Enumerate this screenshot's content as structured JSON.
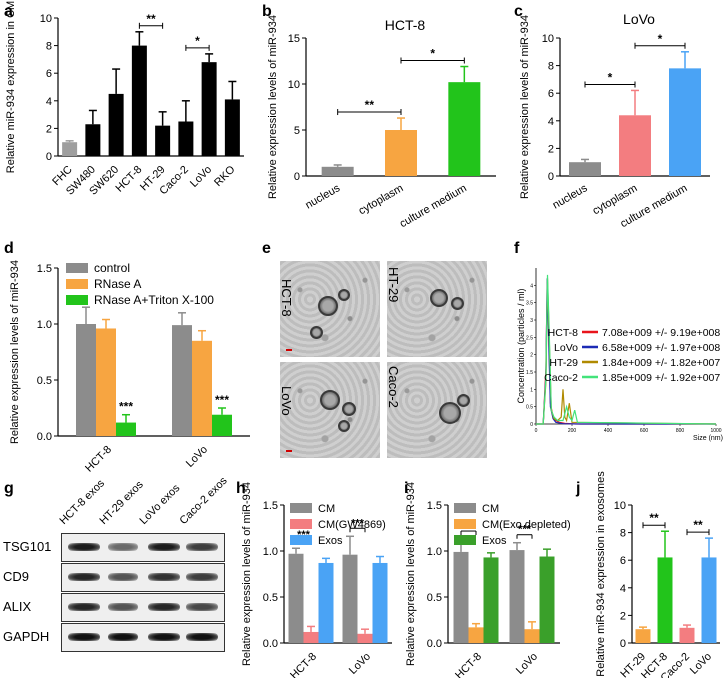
{
  "panels": {
    "a": {
      "letter": "a"
    },
    "b": {
      "letter": "b"
    },
    "c": {
      "letter": "c"
    },
    "d": {
      "letter": "d"
    },
    "e": {
      "letter": "e"
    },
    "f": {
      "letter": "f"
    },
    "g": {
      "letter": "g"
    },
    "h": {
      "letter": "h"
    },
    "i": {
      "letter": "i"
    },
    "j": {
      "letter": "j"
    }
  },
  "chart_data": [
    {
      "id": "a",
      "type": "bar",
      "ylabel": "Relative miR-934 expression  in CM",
      "ylim": [
        0,
        10
      ],
      "yticks": [
        0,
        2,
        4,
        6,
        8,
        10
      ],
      "categories": [
        "FHC",
        "SW480",
        "SW620",
        "HCT-8",
        "HT-29",
        "Caco-2",
        "LoVo",
        "RKO"
      ],
      "values": [
        1.0,
        2.3,
        4.5,
        8.0,
        2.2,
        2.5,
        6.8,
        4.1
      ],
      "errors": [
        0.1,
        1.0,
        1.8,
        1.0,
        1.0,
        1.5,
        0.6,
        1.3
      ],
      "colors": [
        "#9e9e9e",
        "#000000",
        "#000000",
        "#000000",
        "#000000",
        "#000000",
        "#000000",
        "#000000"
      ],
      "brackets": [
        {
          "from": 3,
          "to": 4,
          "label": "**"
        },
        {
          "from": 5,
          "to": 6,
          "label": "*"
        }
      ]
    },
    {
      "id": "b",
      "type": "bar",
      "title": "HCT-8",
      "ylabel": "Relative expression levels of miR-934",
      "ylim": [
        0,
        15
      ],
      "yticks": [
        0,
        5,
        10,
        15
      ],
      "categories": [
        "nucleus",
        "cytoplasm",
        "culture medium"
      ],
      "values": [
        1.0,
        5.0,
        10.2
      ],
      "errors": [
        0.2,
        1.3,
        1.7
      ],
      "colors": [
        "#8c8c8c",
        "#f7a541",
        "#22c41b"
      ],
      "brackets": [
        {
          "from": 0,
          "to": 1,
          "label": "**"
        },
        {
          "from": 1,
          "to": 2,
          "label": "*"
        }
      ]
    },
    {
      "id": "c",
      "type": "bar",
      "title": "LoVo",
      "ylabel": "Relative expression levels of miR-934",
      "ylim": [
        0,
        10
      ],
      "yticks": [
        0,
        2,
        4,
        6,
        8,
        10
      ],
      "categories": [
        "nucleus",
        "cytoplasm",
        "culture medium"
      ],
      "values": [
        1.0,
        4.4,
        7.8
      ],
      "errors": [
        0.2,
        1.8,
        1.2
      ],
      "colors": [
        "#8c8c8c",
        "#f37d80",
        "#4aa3f5"
      ],
      "brackets": [
        {
          "from": 0,
          "to": 1,
          "label": "*"
        },
        {
          "from": 1,
          "to": 2,
          "label": "*"
        }
      ]
    },
    {
      "id": "d",
      "type": "bar",
      "ylabel": "Relative expression levels of miR-934",
      "ylim": [
        0,
        1.5
      ],
      "yticks": [
        0.0,
        0.5,
        1.0,
        1.5
      ],
      "ytick_labels": [
        "0.0",
        "0.5",
        "1.0",
        "1.5"
      ],
      "categories": [
        "HCT-8",
        "LoVo"
      ],
      "series": [
        {
          "name": "control",
          "values": [
            1.0,
            0.99
          ],
          "errors": [
            0.15,
            0.11
          ]
        },
        {
          "name": "RNase A",
          "values": [
            0.96,
            0.85
          ],
          "errors": [
            0.08,
            0.09
          ]
        },
        {
          "name": "RNase A+Triton X-100",
          "values": [
            0.12,
            0.19
          ],
          "errors": [
            0.07,
            0.06
          ]
        }
      ],
      "colors": [
        "#8c8c8c",
        "#f7a541",
        "#22c41b"
      ],
      "annotations": [
        "***",
        "***"
      ],
      "legend": "top-left"
    },
    {
      "id": "f",
      "type": "line",
      "ylabel": "Concentration (particles / ml)",
      "xlabel": "Size (nm)",
      "xlim": [
        0,
        1000
      ],
      "ylim": [
        0,
        4.5
      ],
      "xticks": [
        0,
        200,
        400,
        600,
        800,
        1000
      ],
      "yticks": [
        0,
        0.5,
        1,
        1.5,
        2,
        2.5,
        3,
        3.5,
        4
      ],
      "ytick_labels": [
        "0",
        "0.5",
        "1",
        "1.5",
        "2",
        "2.5",
        "3",
        "3.5",
        "4"
      ],
      "legend": "center-right",
      "series": [
        {
          "name": "HCT-8",
          "label": "7.08e+009 +/- 9.19e+008",
          "color": "#e8141b",
          "x": [
            0,
            40,
            55,
            62,
            70,
            80,
            95,
            110,
            130,
            160,
            220,
            300,
            1000
          ],
          "y": [
            0,
            0,
            1.6,
            4.1,
            2.8,
            0.6,
            0.2,
            0.1,
            0.05,
            0.02,
            0,
            0,
            0
          ]
        },
        {
          "name": "LoVo",
          "label": "6.58e+009 +/- 1.97e+008",
          "color": "#1c2bb5",
          "x": [
            0,
            40,
            55,
            62,
            70,
            80,
            95,
            110,
            150,
            250,
            1000
          ],
          "y": [
            0,
            0,
            1.4,
            4.2,
            2.5,
            0.5,
            0.15,
            0.05,
            0.01,
            0,
            0
          ]
        },
        {
          "name": "HT-29",
          "label": "1.84e+009 +/- 1.82e+007",
          "color": "#b08a00",
          "x": [
            0,
            40,
            55,
            64,
            72,
            85,
            100,
            120,
            140,
            150,
            160,
            170,
            185,
            200,
            1000
          ],
          "y": [
            0,
            0,
            1.2,
            4.2,
            2.7,
            0.4,
            0.15,
            0.1,
            0.2,
            1.0,
            0.2,
            0.1,
            0.6,
            0.05,
            0
          ]
        },
        {
          "name": "Caco-2",
          "label": "1.85e+009 +/- 1.92e+007",
          "color": "#42e37a",
          "x": [
            0,
            40,
            55,
            64,
            72,
            85,
            100,
            120,
            150,
            170,
            185,
            200,
            215,
            230,
            1000
          ],
          "y": [
            0,
            0,
            1.3,
            4.3,
            2.9,
            0.4,
            0.2,
            0.1,
            0.1,
            0.5,
            0.2,
            0.1,
            0.4,
            0.05,
            0
          ]
        }
      ]
    },
    {
      "id": "h",
      "type": "bar",
      "ylabel": "Relative expression levels of miR-934",
      "ylim": [
        0,
        1.5
      ],
      "yticks": [
        0.0,
        0.5,
        1.0,
        1.5
      ],
      "ytick_labels": [
        "0.0",
        "0.5",
        "1.0",
        "1.5"
      ],
      "categories": [
        "HCT-8",
        "LoVo"
      ],
      "series": [
        {
          "name": "CM",
          "values": [
            0.97,
            0.96
          ],
          "errors": [
            0.06,
            0.2
          ]
        },
        {
          "name": "CM(GW4869)",
          "values": [
            0.12,
            0.1
          ],
          "errors": [
            0.06,
            0.05
          ]
        },
        {
          "name": "Exos",
          "values": [
            0.87,
            0.87
          ],
          "errors": [
            0.05,
            0.07
          ]
        }
      ],
      "colors": [
        "#8c8c8c",
        "#f37d80",
        "#4aa3f5"
      ],
      "brackets": [
        {
          "group": 0,
          "label": "***"
        },
        {
          "group": 1,
          "label": "***"
        }
      ],
      "legend": "top-left"
    },
    {
      "id": "i",
      "type": "bar",
      "ylabel": "Relative expression levels of miR-934",
      "ylim": [
        0,
        1.5
      ],
      "yticks": [
        0.0,
        0.5,
        1.0,
        1.5
      ],
      "ytick_labels": [
        "0.0",
        "0.5",
        "1.0",
        "1.5"
      ],
      "categories": [
        "HCT-8",
        "LoVo"
      ],
      "series": [
        {
          "name": "CM",
          "values": [
            0.99,
            1.01
          ],
          "errors": [
            0.14,
            0.08
          ]
        },
        {
          "name": "CM(Exo depleted)",
          "values": [
            0.17,
            0.15
          ],
          "errors": [
            0.04,
            0.08
          ]
        },
        {
          "name": "Exos",
          "values": [
            0.93,
            0.94
          ],
          "errors": [
            0.05,
            0.08
          ]
        }
      ],
      "colors": [
        "#8c8c8c",
        "#f7a541",
        "#3aa02a"
      ],
      "brackets": [
        {
          "group": 0,
          "label": "***"
        },
        {
          "group": 1,
          "label": "***"
        }
      ],
      "legend": "top-left"
    },
    {
      "id": "j",
      "type": "bar",
      "ylabel": "Relative miR-934 expression in exosomes",
      "ylim": [
        0,
        10
      ],
      "yticks": [
        0,
        2,
        4,
        6,
        8,
        10
      ],
      "categories": [
        "HT-29",
        "HCT-8",
        "Caco-2",
        "LoVo"
      ],
      "values": [
        1.0,
        6.2,
        1.1,
        6.2
      ],
      "errors": [
        0.15,
        1.9,
        0.2,
        1.4
      ],
      "colors": [
        "#f7a541",
        "#22c41b",
        "#f37d80",
        "#4aa3f5"
      ],
      "brackets": [
        {
          "from": 0,
          "to": 1,
          "label": "**"
        },
        {
          "from": 2,
          "to": 3,
          "label": "**"
        }
      ]
    }
  ],
  "em_panel": {
    "labels": [
      "HCT-8",
      "HT-29",
      "LoVo",
      "Caco-2"
    ]
  },
  "western_blot": {
    "lanes": [
      "HCT-8 exos",
      "HT-29 exos",
      "LoVo exos",
      "Caco-2 exos"
    ],
    "rows": [
      {
        "label": "TSG101",
        "intensity": [
          0.95,
          0.6,
          0.95,
          0.8
        ]
      },
      {
        "label": "CD9",
        "intensity": [
          0.9,
          0.7,
          0.85,
          0.8
        ]
      },
      {
        "label": "ALIX",
        "intensity": [
          0.9,
          0.7,
          0.9,
          0.75
        ]
      },
      {
        "label": "GAPDH",
        "intensity": [
          1.0,
          1.0,
          1.0,
          1.0
        ]
      }
    ]
  }
}
